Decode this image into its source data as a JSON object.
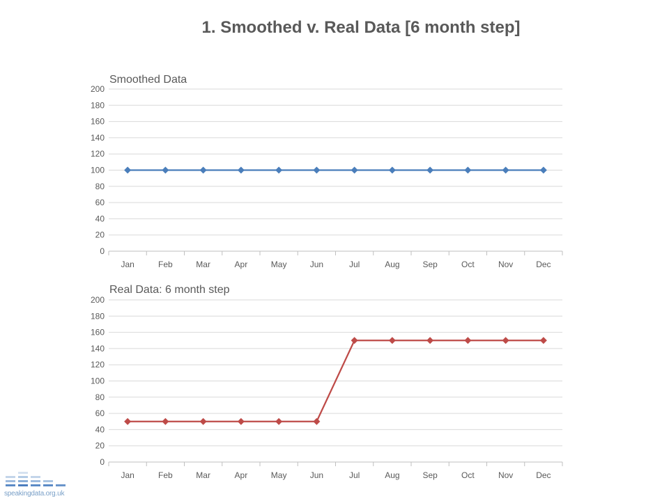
{
  "slide": {
    "title": "1. Smoothed v. Real Data [6 month step]",
    "logo_text": "speakingdata.org.uk"
  },
  "chart_data": [
    {
      "type": "line",
      "title": "Smoothed Data",
      "categories": [
        "Jan",
        "Feb",
        "Mar",
        "Apr",
        "May",
        "Jun",
        "Jul",
        "Aug",
        "Sep",
        "Oct",
        "Nov",
        "Dec"
      ],
      "series": [
        {
          "values": [
            100,
            100,
            100,
            100,
            100,
            100,
            100,
            100,
            100,
            100,
            100,
            100
          ],
          "color": "#4a7ebb",
          "marker": "diamond"
        }
      ],
      "ylim": [
        0,
        200
      ],
      "yticks": [
        0,
        20,
        40,
        60,
        80,
        100,
        120,
        140,
        160,
        180,
        200
      ],
      "grid": true,
      "legend": "none"
    },
    {
      "type": "line",
      "title": "Real Data: 6 month step",
      "categories": [
        "Jan",
        "Feb",
        "Mar",
        "Apr",
        "May",
        "Jun",
        "Jul",
        "Aug",
        "Sep",
        "Oct",
        "Nov",
        "Dec"
      ],
      "series": [
        {
          "values": [
            50,
            50,
            50,
            50,
            50,
            50,
            150,
            150,
            150,
            150,
            150,
            150
          ],
          "color": "#be4b48",
          "marker": "diamond"
        }
      ],
      "ylim": [
        0,
        200
      ],
      "yticks": [
        0,
        20,
        40,
        60,
        80,
        100,
        120,
        140,
        160,
        180,
        200
      ],
      "grid": true,
      "legend": "none"
    }
  ]
}
